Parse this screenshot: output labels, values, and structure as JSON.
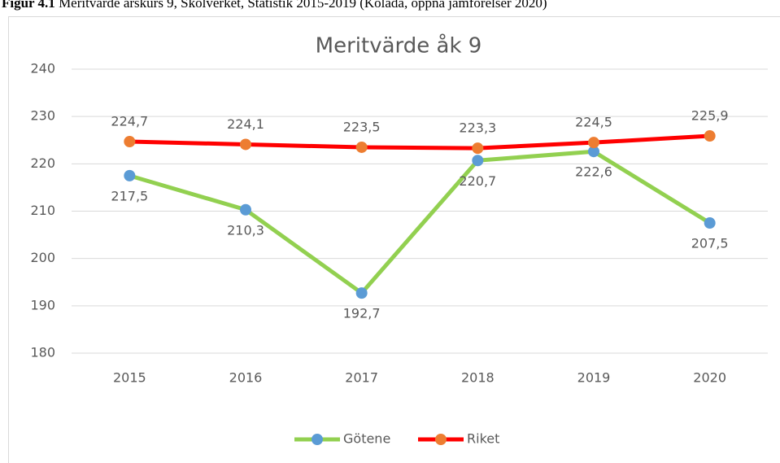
{
  "caption": {
    "label": "Figur 4.1",
    "text": "Meritvärde årskurs 9, Skolverket, Statistik 2015-2019 (Kolada, öppna jämförelser 2020)"
  },
  "chart_data": {
    "type": "line",
    "title": "Meritvärde åk 9",
    "categories": [
      "2015",
      "2016",
      "2017",
      "2018",
      "2019",
      "2020"
    ],
    "series": [
      {
        "name": "Götene",
        "color": "#92d050",
        "marker_color": "#5b9bd5",
        "values": [
          217.5,
          210.3,
          192.7,
          220.7,
          222.6,
          207.5
        ],
        "value_labels": [
          "217,5",
          "210,3",
          "192,7",
          "220,7",
          "222,6",
          "207,5"
        ],
        "label_position": "below"
      },
      {
        "name": "Riket",
        "color": "#ff0000",
        "marker_color": "#ed7d31",
        "values": [
          224.7,
          224.1,
          223.5,
          223.3,
          224.5,
          225.9
        ],
        "value_labels": [
          "224,7",
          "224,1",
          "223,5",
          "223,3",
          "224,5",
          "225,9"
        ],
        "label_position": "above"
      }
    ],
    "ylim": [
      180,
      240
    ],
    "yticks": [
      180,
      190,
      200,
      210,
      220,
      230,
      240
    ],
    "grid": true,
    "legend": "bottom"
  }
}
